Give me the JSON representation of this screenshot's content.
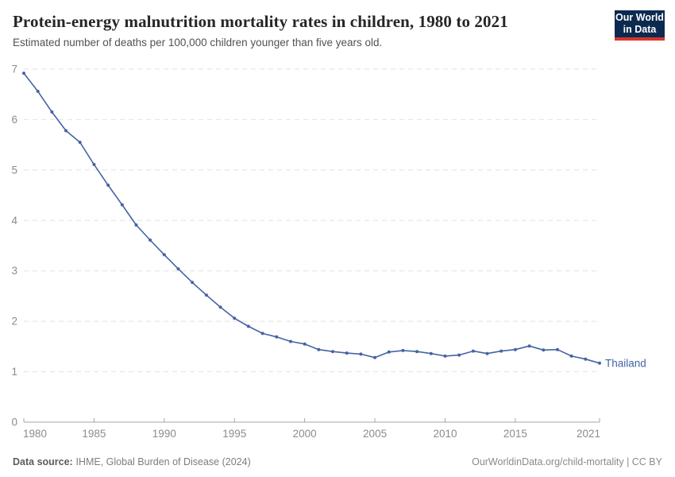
{
  "header": {
    "title": "Protein-energy malnutrition mortality rates in children, 1980 to 2021",
    "subtitle": "Estimated number of deaths per 100,000 children younger than five years old.",
    "logo": {
      "line1": "Our World",
      "line2": "in Data"
    }
  },
  "chart_data": {
    "type": "line",
    "title": "Protein-energy malnutrition mortality rates in children, 1980 to 2021",
    "subtitle": "Estimated number of deaths per 100,000 children younger than five years old.",
    "xlabel": "",
    "ylabel": "",
    "xlim": [
      1980,
      2021
    ],
    "ylim": [
      0,
      7
    ],
    "xticks": [
      1980,
      1985,
      1990,
      1995,
      2000,
      2005,
      2010,
      2015,
      2021
    ],
    "yticks": [
      0,
      1,
      2,
      3,
      4,
      5,
      6,
      7
    ],
    "grid": "horizontal-dashed",
    "legend_position": "end-of-line-label",
    "years": [
      1980,
      1981,
      1982,
      1983,
      1984,
      1985,
      1986,
      1987,
      1988,
      1989,
      1990,
      1991,
      1992,
      1993,
      1994,
      1995,
      1996,
      1997,
      1998,
      1999,
      2000,
      2001,
      2002,
      2003,
      2004,
      2005,
      2006,
      2007,
      2008,
      2009,
      2010,
      2011,
      2012,
      2013,
      2014,
      2015,
      2016,
      2017,
      2018,
      2019,
      2020,
      2021
    ],
    "series": [
      {
        "name": "Thailand",
        "color": "#4464a3",
        "values": [
          6.92,
          6.56,
          6.15,
          5.78,
          5.55,
          5.11,
          4.7,
          4.31,
          3.91,
          3.61,
          3.32,
          3.04,
          2.77,
          2.52,
          2.28,
          2.06,
          1.9,
          1.76,
          1.69,
          1.6,
          1.55,
          1.44,
          1.4,
          1.37,
          1.35,
          1.28,
          1.39,
          1.42,
          1.4,
          1.36,
          1.31,
          1.33,
          1.41,
          1.36,
          1.41,
          1.44,
          1.51,
          1.43,
          1.44,
          1.31,
          1.25,
          1.17
        ]
      }
    ],
    "colors": {
      "line": "#4464a3",
      "grid": "#e2e2e2",
      "axis": "#a5a5a5",
      "tick_label": "#8c8c8c",
      "logo_bg": "#0c2a50",
      "logo_accent": "#d8352c"
    }
  },
  "footer": {
    "datasource_label": "Data source:",
    "datasource_value": "IHME, Global Burden of Disease (2024)",
    "link": "OurWorldinData.org/child-mortality | CC BY"
  }
}
